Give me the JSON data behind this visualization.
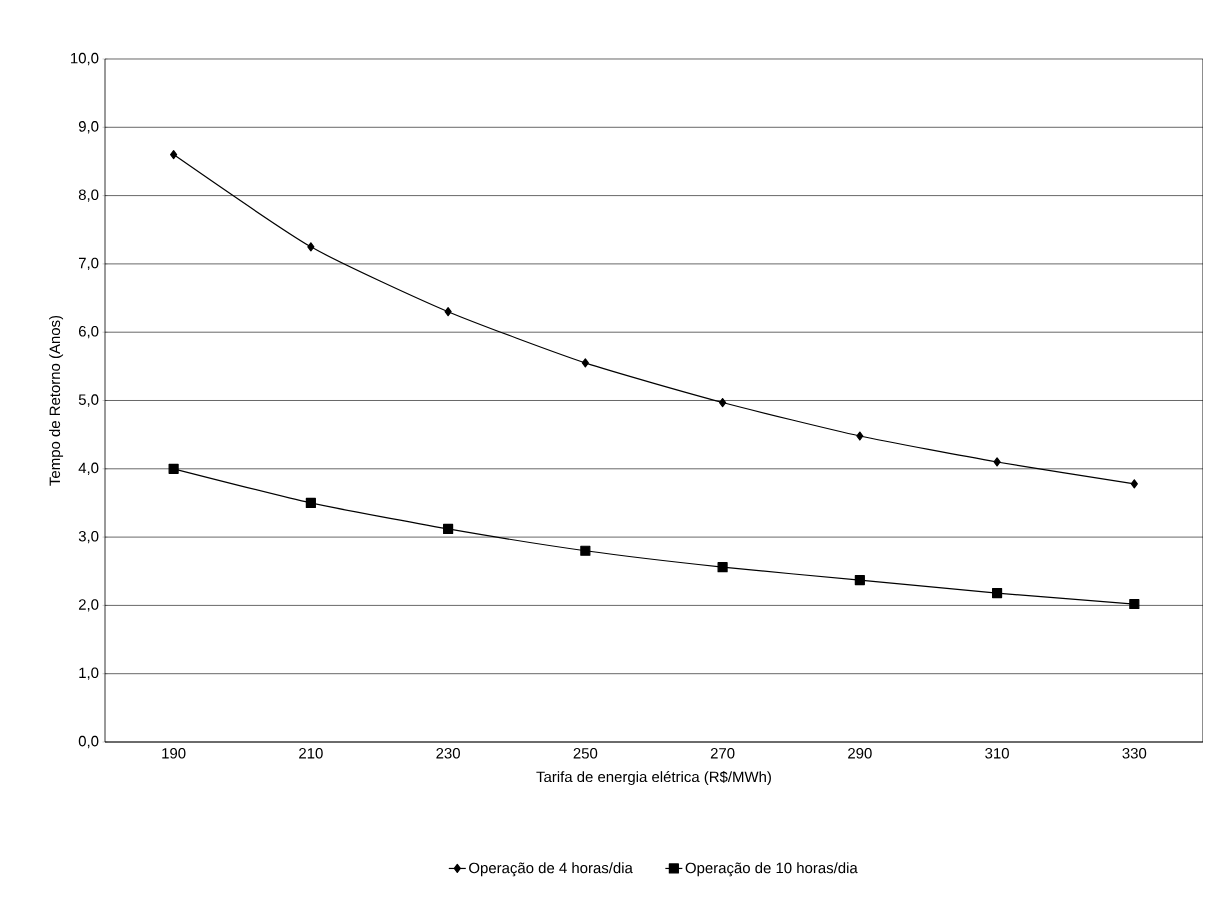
{
  "chart_data": {
    "type": "line",
    "xlabel": "Tarifa de energia elétrica (R$/MWh)",
    "ylabel": "Tempo de Retorno (Anos)",
    "categories": [
      "190",
      "210",
      "230",
      "250",
      "270",
      "290",
      "310",
      "330"
    ],
    "series": [
      {
        "name": "Operação de 4 horas/dia",
        "color": "#000000",
        "marker": "diamond",
        "values": [
          8.6,
          7.25,
          6.3,
          5.55,
          4.97,
          4.48,
          4.1,
          3.78
        ]
      },
      {
        "name": "Operação de 10 horas/dia",
        "color": "#000000",
        "marker": "square",
        "values": [
          4.0,
          3.5,
          3.12,
          2.8,
          2.56,
          2.37,
          2.18,
          2.02
        ]
      }
    ],
    "ylim": [
      0,
      10
    ],
    "yticks": [
      {
        "value": 0,
        "label": "0,0"
      },
      {
        "value": 1,
        "label": "1,0"
      },
      {
        "value": 2,
        "label": "2,0"
      },
      {
        "value": 3,
        "label": "3,0"
      },
      {
        "value": 4,
        "label": "4,0"
      },
      {
        "value": 5,
        "label": "5,0"
      },
      {
        "value": 6,
        "label": "6,0"
      },
      {
        "value": 7,
        "label": "7,0"
      },
      {
        "value": 8,
        "label": "8,0"
      },
      {
        "value": 9,
        "label": "9,0"
      },
      {
        "value": 10,
        "label": "10,0"
      }
    ],
    "grid": "y",
    "legend": "bottom"
  }
}
